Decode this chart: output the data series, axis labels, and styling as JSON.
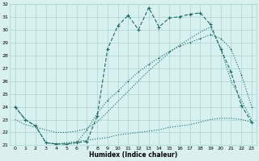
{
  "xlabel": "Humidex (Indice chaleur)",
  "bg_color": "#d8f0f0",
  "grid_color": "#aad4ce",
  "line_color": "#1a6b5e",
  "xlim_min": -0.5,
  "xlim_max": 23.5,
  "ylim_min": 21,
  "ylim_max": 32,
  "xticks": [
    0,
    1,
    2,
    3,
    4,
    5,
    6,
    7,
    8,
    9,
    10,
    11,
    12,
    13,
    14,
    15,
    16,
    17,
    18,
    19,
    20,
    21,
    22,
    23
  ],
  "yticks": [
    21,
    22,
    23,
    24,
    25,
    26,
    27,
    28,
    29,
    30,
    31,
    32
  ],
  "s1_x": [
    0,
    1,
    2,
    3,
    4,
    5,
    6,
    7,
    8,
    9,
    10,
    11,
    12,
    13,
    14,
    15,
    16,
    17,
    18,
    19,
    20,
    21,
    22,
    23
  ],
  "s1_y": [
    24.0,
    23.0,
    22.5,
    21.2,
    21.1,
    21.1,
    21.2,
    21.3,
    23.3,
    28.5,
    30.3,
    31.1,
    30.0,
    31.7,
    30.2,
    30.9,
    31.0,
    31.2,
    31.3,
    30.4,
    28.5,
    26.7,
    24.1,
    22.8
  ],
  "s2_x": [
    0,
    1,
    2,
    3,
    4,
    5,
    6,
    7,
    8,
    9,
    10,
    11,
    12,
    13,
    14,
    15,
    16,
    17,
    18,
    19,
    20,
    21,
    22,
    23
  ],
  "s2_y": [
    23.0,
    22.6,
    22.4,
    22.2,
    22.0,
    22.0,
    22.1,
    22.3,
    22.8,
    23.6,
    24.4,
    25.2,
    26.0,
    26.8,
    27.5,
    28.2,
    28.8,
    29.3,
    29.8,
    30.2,
    28.5,
    26.0,
    24.5,
    23.0
  ],
  "s3_x": [
    0,
    1,
    2,
    3,
    4,
    5,
    6,
    7,
    8,
    9,
    10,
    11,
    12,
    13,
    14,
    15,
    16,
    17,
    18,
    19,
    20,
    21,
    22,
    23
  ],
  "s3_y": [
    24.0,
    23.0,
    22.5,
    21.2,
    21.1,
    21.1,
    21.2,
    22.2,
    23.5,
    24.5,
    25.2,
    26.0,
    26.7,
    27.3,
    27.8,
    28.3,
    28.7,
    29.0,
    29.3,
    29.6,
    29.3,
    28.5,
    26.5,
    24.0
  ],
  "s4_x": [
    0,
    1,
    2,
    3,
    4,
    5,
    6,
    7,
    8,
    9,
    10,
    11,
    12,
    13,
    14,
    15,
    16,
    17,
    18,
    19,
    20,
    21,
    22,
    23
  ],
  "s4_y": [
    24.0,
    23.0,
    22.5,
    21.2,
    21.1,
    21.2,
    21.3,
    21.4,
    21.5,
    21.6,
    21.8,
    21.9,
    22.0,
    22.1,
    22.2,
    22.4,
    22.5,
    22.6,
    22.8,
    23.0,
    23.1,
    23.1,
    23.0,
    22.8
  ]
}
